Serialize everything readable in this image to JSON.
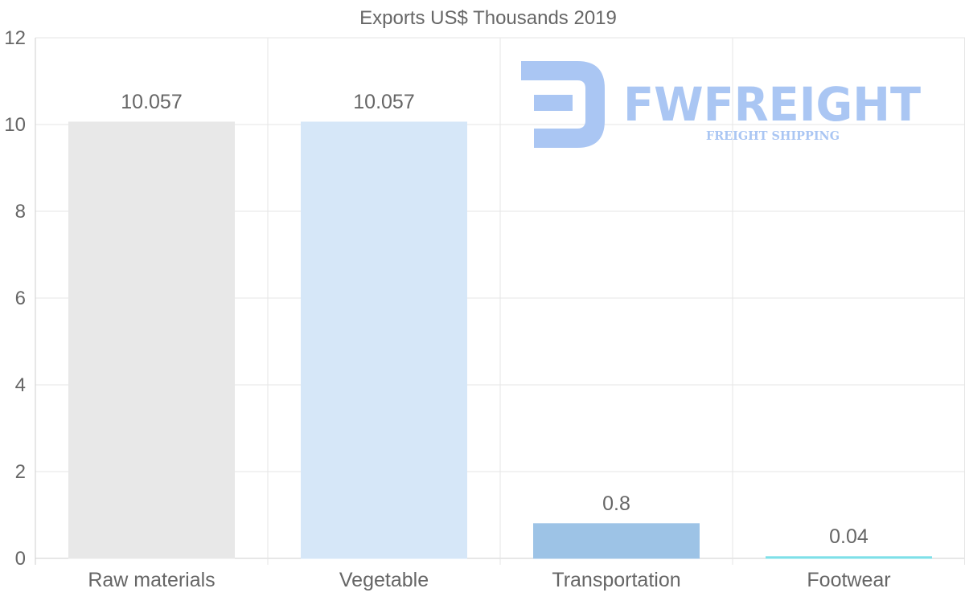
{
  "colors": {
    "bars": [
      "#e8e8e8",
      "#d6e7f8",
      "#9dc3e6",
      "#7fe0e8"
    ],
    "text": "#666666",
    "grid": "#e6e6e6",
    "watermark": "#aac6f3"
  },
  "watermark": {
    "brand": "FWFREIGHT",
    "tagline": "FREIGHT SHIPPING"
  },
  "chart_data": {
    "type": "bar",
    "title": "Exports US$ Thousands 2019",
    "categories": [
      "Raw materials",
      "Vegetable",
      "Transportation",
      "Footwear"
    ],
    "values": [
      10.057,
      10.057,
      0.8,
      0.04
    ],
    "data_labels": [
      "10.057",
      "10.057",
      "0.8",
      "0.04"
    ],
    "yticks": [
      0,
      2,
      4,
      6,
      8,
      10,
      12
    ],
    "ylim": [
      0,
      12
    ],
    "xlabel": "",
    "ylabel": "",
    "grid": true,
    "legend": "none"
  }
}
